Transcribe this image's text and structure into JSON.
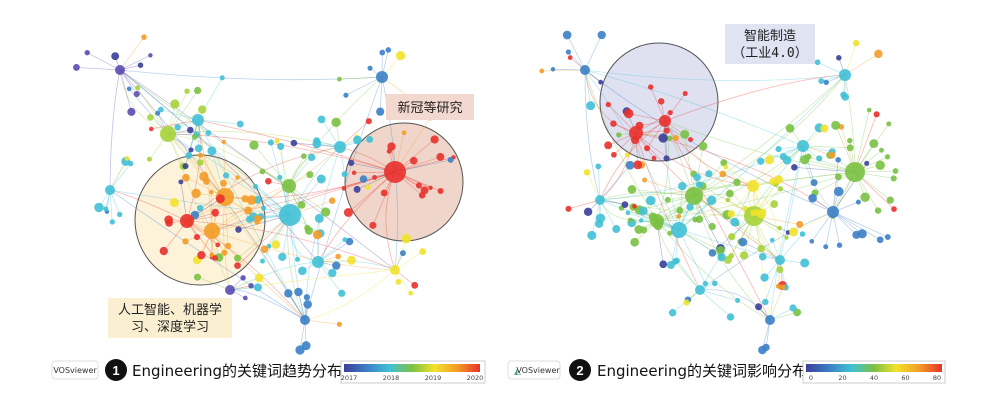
{
  "chart_data": [
    {
      "type": "network",
      "panel_number": "1",
      "title": "Engineering的关键词趋势分布",
      "software_label": "VOSviewer",
      "color_scale": {
        "ticks": [
          "2017",
          "2018",
          "2019",
          "2020"
        ],
        "colors": [
          "#3b3f99",
          "#3c7fc6",
          "#41c0d6",
          "#7ac143",
          "#f2e22a",
          "#f39c28",
          "#e8312c"
        ]
      },
      "annotations": [
        {
          "text": "新冠等研究",
          "cluster": "red"
        },
        {
          "text_lines": [
            "人工智能、机器学",
            "习、深度学习"
          ],
          "cluster": "orange"
        }
      ]
    },
    {
      "type": "network",
      "panel_number": "2",
      "title": "Engineering的关键词影响分布",
      "software_label": "VOSviewer",
      "color_scale": {
        "ticks": [
          "0",
          "20",
          "40",
          "60",
          "80"
        ],
        "colors": [
          "#3b3f99",
          "#3c7fc6",
          "#41c0d6",
          "#7ac143",
          "#f2e22a",
          "#f39c28",
          "#e8312c"
        ]
      },
      "annotations": [
        {
          "text_lines": [
            "智能制造",
            "（工业4.0）"
          ],
          "cluster": "red"
        }
      ]
    }
  ]
}
